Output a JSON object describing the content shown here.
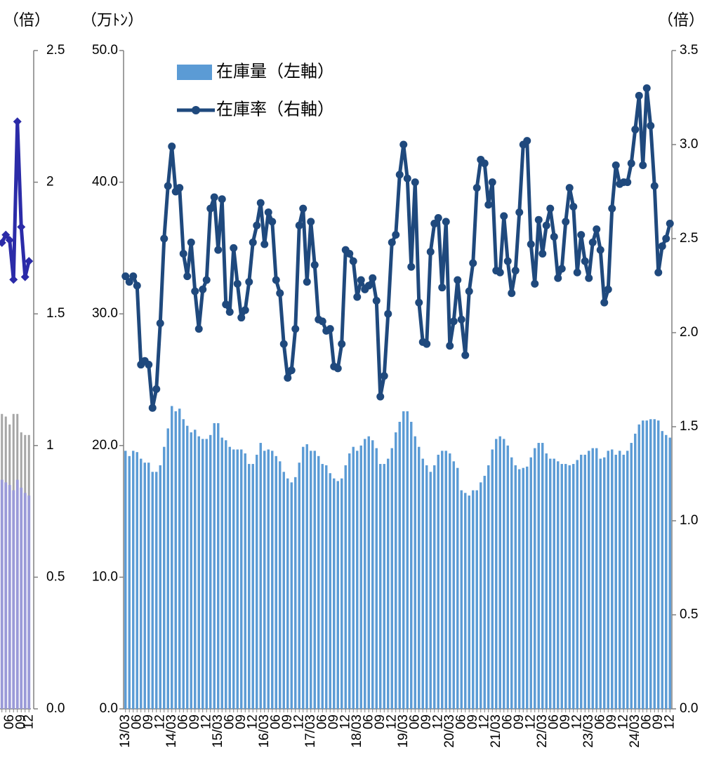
{
  "chart_data": [
    {
      "type": "combo",
      "y2label": "（倍）",
      "categories": [
        null,
        null,
        "06",
        null,
        null,
        "09",
        null,
        "12"
      ],
      "y2lim": [
        0,
        2.5
      ],
      "y2ticks": [
        2.5,
        2.0,
        1.5,
        1.0,
        0.5,
        {
          "value": 0,
          "label": "0.0"
        }
      ],
      "series": [
        {
          "type": "bar",
          "axis": "y2",
          "color": "#a6a6a6",
          "values": [
            1.12,
            1.11,
            1.08,
            1.12,
            1.12,
            1.05,
            1.04,
            1.04
          ]
        },
        {
          "type": "bar",
          "axis": "y2",
          "color": "#9a9ad8",
          "values": [
            0.87,
            0.86,
            0.85,
            0.83,
            0.87,
            0.84,
            0.82,
            0.81
          ]
        },
        {
          "type": "line",
          "axis": "y2",
          "marker": "diamond",
          "color": "#2b2ba8",
          "values": [
            1.77,
            1.8,
            1.78,
            1.63,
            2.23,
            1.83,
            1.64,
            1.7
          ]
        }
      ]
    },
    {
      "type": "combo",
      "ylabel": "（万ﾄﾝ）",
      "y2label": "（倍）",
      "categories": [
        "13/03",
        null,
        null,
        "06",
        null,
        null,
        "09",
        null,
        null,
        "12",
        null,
        null,
        "14/03",
        null,
        null,
        "06",
        null,
        null,
        "09",
        null,
        null,
        "12",
        null,
        null,
        "15/03",
        null,
        null,
        "06",
        null,
        null,
        "09",
        null,
        null,
        "12",
        null,
        null,
        "16/03",
        null,
        null,
        "06",
        null,
        null,
        "09",
        null,
        null,
        "12",
        null,
        null,
        "17/03",
        null,
        null,
        "06",
        null,
        null,
        "09",
        null,
        null,
        "12",
        null,
        null,
        "18/03",
        null,
        null,
        "06",
        null,
        null,
        "09",
        null,
        null,
        "12",
        null,
        null,
        "19/03",
        null,
        null,
        "06",
        null,
        null,
        "09",
        null,
        null,
        "12",
        null,
        null,
        "20/03",
        null,
        null,
        "06",
        null,
        null,
        "09",
        null,
        null,
        "12",
        null,
        null,
        "21/03",
        null,
        null,
        "06",
        null,
        null,
        "09",
        null,
        null,
        "12",
        null,
        null,
        "22/03",
        null,
        null,
        "06",
        null,
        null,
        "09",
        null,
        null,
        "12",
        null,
        null,
        "23/03",
        null,
        null,
        "06",
        null,
        null,
        "09",
        null,
        null,
        "12",
        null,
        null,
        "24/03",
        null,
        null,
        "06",
        null,
        null,
        "09",
        null,
        null,
        "12"
      ],
      "ylim": [
        0,
        50
      ],
      "yticks": [
        {
          "value": 50,
          "label": "50.0"
        },
        {
          "value": 40,
          "label": "40.0"
        },
        {
          "value": 30,
          "label": "30.0"
        },
        {
          "value": 20,
          "label": "20.0"
        },
        {
          "value": 10,
          "label": "10.0"
        },
        {
          "value": 0,
          "label": "0.0"
        }
      ],
      "y2lim": [
        0,
        3.5
      ],
      "y2ticks": [
        3.5,
        {
          "value": 3,
          "label": "3.0"
        },
        2.5,
        {
          "value": 2,
          "label": "2.0"
        },
        1.5,
        {
          "value": 1,
          "label": "1.0"
        },
        0.5,
        {
          "value": 0,
          "label": "0.0"
        }
      ],
      "series": [
        {
          "type": "bar",
          "name": "在庫量（左軸）",
          "color": "#5b9bd5",
          "values": [
            19.6,
            19.2,
            19.6,
            19.5,
            19.0,
            18.7,
            18.7,
            18.0,
            18.0,
            18.5,
            19.9,
            21.3,
            23.0,
            22.6,
            22.8,
            22.0,
            21.5,
            21.0,
            21.2,
            20.7,
            20.5,
            20.5,
            20.8,
            21.7,
            21.7,
            20.6,
            20.4,
            19.9,
            19.7,
            19.7,
            19.7,
            19.4,
            18.6,
            18.6,
            19.3,
            20.2,
            19.6,
            19.7,
            19.6,
            19.2,
            18.8,
            18.0,
            17.5,
            17.2,
            17.6,
            18.7,
            19.9,
            20.1,
            19.6,
            19.6,
            19.2,
            18.6,
            18.5,
            17.9,
            17.5,
            17.3,
            17.5,
            18.5,
            19.4,
            19.9,
            19.6,
            20.0,
            20.5,
            20.7,
            20.4,
            19.8,
            18.6,
            18.6,
            19.0,
            19.8,
            21.0,
            21.8,
            22.6,
            22.6,
            21.8,
            20.7,
            19.9,
            19.0,
            18.5,
            18.0,
            18.5,
            19.3,
            19.6,
            19.6,
            19.4,
            18.8,
            18.3,
            16.6,
            16.4,
            16.2,
            16.6,
            16.6,
            17.2,
            17.7,
            18.5,
            19.7,
            20.5,
            20.7,
            20.5,
            20.0,
            19.1,
            18.5,
            18.2,
            18.3,
            18.4,
            19.1,
            19.8,
            20.2,
            20.2,
            19.4,
            19.0,
            19.0,
            18.8,
            18.6,
            18.6,
            18.5,
            18.6,
            18.9,
            19.3,
            19.3,
            19.6,
            19.8,
            19.8,
            19.0,
            19.1,
            19.6,
            19.7,
            19.3,
            19.6,
            19.3,
            19.6,
            20.2,
            20.9,
            21.6,
            21.9,
            21.9,
            22.0,
            22.0,
            21.9,
            21.1,
            20.8,
            20.6
          ]
        },
        {
          "type": "line",
          "name": "在庫率（右軸）",
          "axis": "y2",
          "marker": "circle",
          "color": "#1f497d",
          "values": [
            2.3,
            2.27,
            2.3,
            2.25,
            1.83,
            1.85,
            1.83,
            1.6,
            1.7,
            2.05,
            2.5,
            2.78,
            2.99,
            2.75,
            2.77,
            2.42,
            2.3,
            2.48,
            2.22,
            2.02,
            2.23,
            2.28,
            2.66,
            2.72,
            2.44,
            2.71,
            2.15,
            2.11,
            2.45,
            2.26,
            2.08,
            2.12,
            2.27,
            2.48,
            2.57,
            2.69,
            2.47,
            2.64,
            2.59,
            2.28,
            2.21,
            1.94,
            1.76,
            1.8,
            2.02,
            2.57,
            2.66,
            2.27,
            2.59,
            2.36,
            2.07,
            2.06,
            2.01,
            2.02,
            1.82,
            1.81,
            1.94,
            2.44,
            2.42,
            2.38,
            2.19,
            2.28,
            2.23,
            2.25,
            2.29,
            2.17,
            1.66,
            1.77,
            2.1,
            2.48,
            2.52,
            2.84,
            3.0,
            2.82,
            2.35,
            2.8,
            2.16,
            1.95,
            1.94,
            2.43,
            2.58,
            2.61,
            2.24,
            2.59,
            1.93,
            2.06,
            2.28,
            2.07,
            1.88,
            2.22,
            2.37,
            2.77,
            2.92,
            2.9,
            2.68,
            2.8,
            2.33,
            2.32,
            2.62,
            2.38,
            2.21,
            2.33,
            2.64,
            3.0,
            3.02,
            2.47,
            2.26,
            2.6,
            2.42,
            2.57,
            2.66,
            2.51,
            2.29,
            2.34,
            2.59,
            2.77,
            2.67,
            2.32,
            2.52,
            2.38,
            2.29,
            2.48,
            2.55,
            2.44,
            2.16,
            2.23,
            2.66,
            2.89,
            2.79,
            2.8,
            2.8,
            2.9,
            3.08,
            3.26,
            2.89,
            3.3,
            3.1,
            2.78,
            2.32,
            2.46,
            2.5,
            2.58
          ]
        }
      ]
    }
  ]
}
